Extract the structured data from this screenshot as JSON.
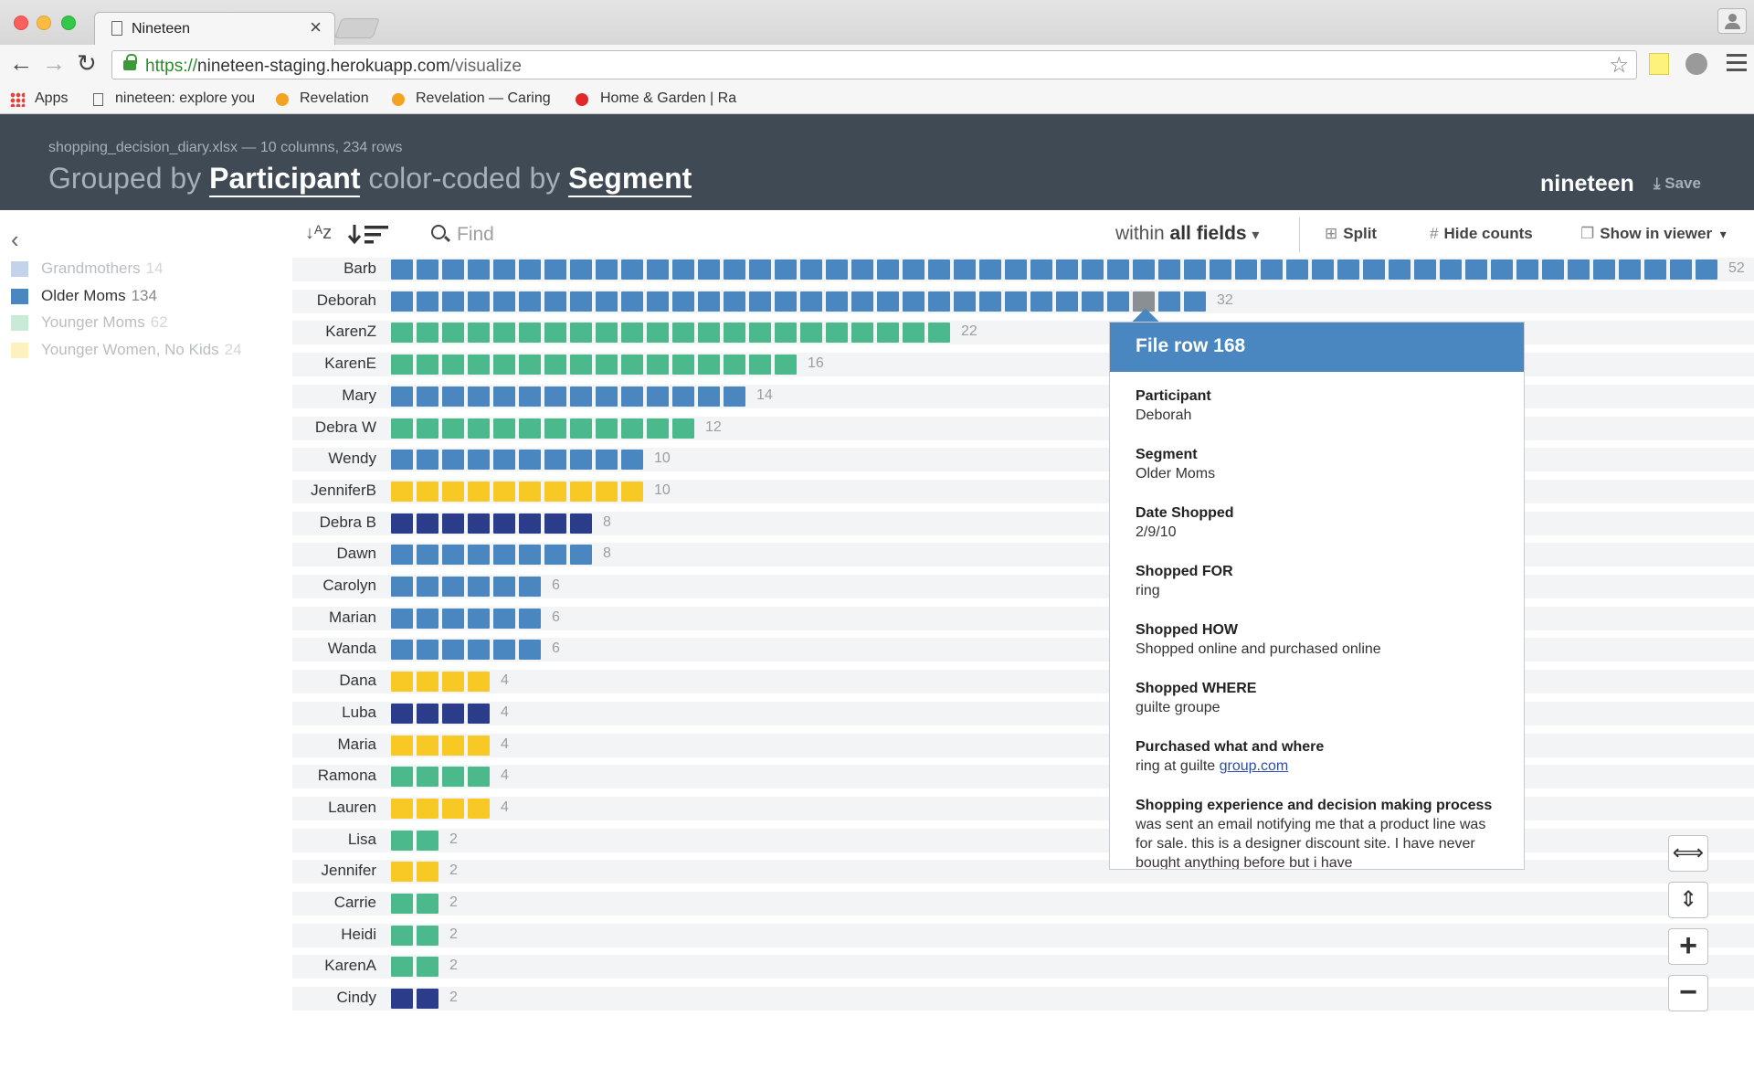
{
  "browser": {
    "tab_title": "Nineteen",
    "tab_close": "×",
    "url_proto": "https://",
    "url_host": "nineteen-staging.herokuapp.com",
    "url_path": "/visualize",
    "nav_back": "←",
    "nav_forward": "→",
    "nav_reload": "↻",
    "star": "☆",
    "bookmarks": [
      {
        "label": "Apps"
      },
      {
        "label": "nineteen: explore you"
      },
      {
        "label": "Revelation"
      },
      {
        "label": "Revelation — Caring"
      },
      {
        "label": "Home & Garden | Ra"
      }
    ]
  },
  "header": {
    "file_meta": "shopping_decision_diary.xlsx — 10 columns, 234 rows",
    "grouped_prefix": "Grouped by",
    "grouped_value": "Participant",
    "color_prefix": "color-coded by",
    "color_value": "Segment",
    "brand": "nineteen",
    "save_icon": "⤓",
    "save_label": "Save"
  },
  "controls": {
    "collapse": "‹",
    "sort_az": "↓ᴬz",
    "find_placeholder": "Find",
    "within_prefix": "within",
    "within_value": "all fields",
    "within_caret": "▾",
    "split_icon": "⊞",
    "split_label": "Split",
    "hide_icon": "#",
    "hide_label": "Hide counts",
    "viewer_icon": "❐",
    "viewer_label": "Show in viewer",
    "viewer_caret": "▾"
  },
  "legend": [
    {
      "label": "Grandmothers",
      "count": "14",
      "color": "#c3d4ea",
      "active": false
    },
    {
      "label": "Older Moms",
      "count": "134",
      "color": "#4a86c0",
      "active": true
    },
    {
      "label": "Younger Moms",
      "count": "62",
      "color": "#c7ebd7",
      "active": false
    },
    {
      "label": "Younger Women, No Kids",
      "count": "24",
      "color": "#fdf1bd",
      "active": false
    }
  ],
  "colors": {
    "olderMoms": "#4a86c0",
    "youngerMoms": "#4cb98c",
    "youngerWomen": "#f8c825",
    "grandmothers": "#2a3c8a",
    "highlight": "#8a8f94"
  },
  "chart_data": {
    "type": "table",
    "rows": [
      {
        "name": "Barb",
        "count": 52,
        "segment": "olderMoms"
      },
      {
        "name": "Deborah",
        "count": 32,
        "segment": "olderMoms",
        "highlight_index": 29
      },
      {
        "name": "KarenZ",
        "count": 22,
        "segment": "youngerMoms"
      },
      {
        "name": "KarenE",
        "count": 16,
        "segment": "youngerMoms"
      },
      {
        "name": "Mary",
        "count": 14,
        "segment": "olderMoms"
      },
      {
        "name": "Debra W",
        "count": 12,
        "segment": "youngerMoms"
      },
      {
        "name": "Wendy",
        "count": 10,
        "segment": "olderMoms"
      },
      {
        "name": "JenniferB",
        "count": 10,
        "segment": "youngerWomen"
      },
      {
        "name": "Debra B",
        "count": 8,
        "segment": "grandmothers"
      },
      {
        "name": "Dawn",
        "count": 8,
        "segment": "olderMoms"
      },
      {
        "name": "Carolyn",
        "count": 6,
        "segment": "olderMoms"
      },
      {
        "name": "Marian",
        "count": 6,
        "segment": "olderMoms"
      },
      {
        "name": "Wanda",
        "count": 6,
        "segment": "olderMoms"
      },
      {
        "name": "Dana",
        "count": 4,
        "segment": "youngerWomen"
      },
      {
        "name": "Luba",
        "count": 4,
        "segment": "grandmothers"
      },
      {
        "name": "Maria",
        "count": 4,
        "segment": "youngerWomen"
      },
      {
        "name": "Ramona",
        "count": 4,
        "segment": "youngerMoms"
      },
      {
        "name": "Lauren",
        "count": 4,
        "segment": "youngerWomen"
      },
      {
        "name": "Lisa",
        "count": 2,
        "segment": "youngerMoms"
      },
      {
        "name": "Jennifer",
        "count": 2,
        "segment": "youngerWomen"
      },
      {
        "name": "Carrie",
        "count": 2,
        "segment": "youngerMoms"
      },
      {
        "name": "Heidi",
        "count": 2,
        "segment": "youngerMoms"
      },
      {
        "name": "KarenA",
        "count": 2,
        "segment": "youngerMoms"
      },
      {
        "name": "Cindy",
        "count": 2,
        "segment": "grandmothers"
      }
    ]
  },
  "tooltip": {
    "title": "File row 168",
    "fields": [
      {
        "key": "Participant",
        "value": "Deborah"
      },
      {
        "key": "Segment",
        "value": "Older Moms"
      },
      {
        "key": "Date Shopped",
        "value": "2/9/10"
      },
      {
        "key": "Shopped FOR",
        "value": "ring"
      },
      {
        "key": "Shopped HOW",
        "value": "Shopped online and purchased online"
      },
      {
        "key": "Shopped WHERE",
        "value": "guilte groupe"
      }
    ],
    "purchased_key": "Purchased what and where",
    "purchased_prefix": "ring at guilte ",
    "purchased_link": "group.com",
    "experience_key": "Shopping experience and decision making process",
    "experience_value": "was sent an email notifying me that a product line was for sale. this is a designer discount site. I have never bought anything before but i have"
  },
  "zoom": {
    "fit_width": "⟺",
    "fit_height": "⇕",
    "zoom_in": "+",
    "zoom_out": "−"
  }
}
